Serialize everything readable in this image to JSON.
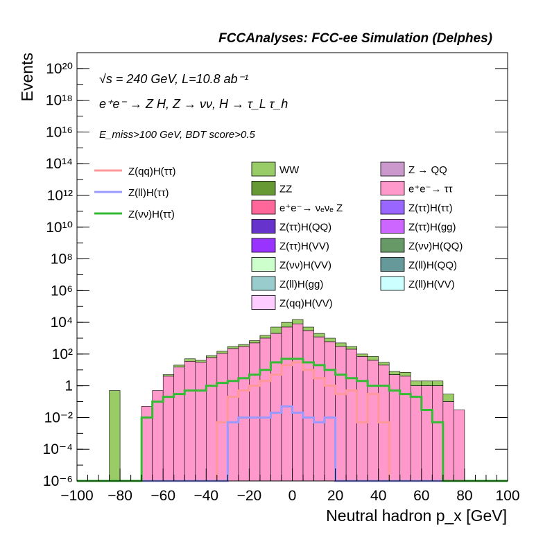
{
  "header": "FCCAnalyses: FCC-ee Simulation (Delphes)",
  "annotations": {
    "line1": "√s = 240 GeV, L=10.8 ab⁻¹",
    "line2": "e⁺e⁻ → Z H, Z → νν, H → τ_L τ_h",
    "line3": "E_miss>100 GeV, BDT score>0.5"
  },
  "chart_data": {
    "type": "bar",
    "stacked": true,
    "yscale": "log",
    "xlabel": "Neutral hadron p_x [GeV]",
    "ylabel": "Events",
    "xlim": [
      -100,
      100
    ],
    "ylim": [
      1e-06,
      1e+21
    ],
    "bin_width": 5,
    "xticks": [
      -100,
      -80,
      -60,
      -40,
      -20,
      0,
      20,
      40,
      60,
      80,
      100
    ],
    "xtick_labels": [
      "−100",
      "−80",
      "−60",
      "−40",
      "−20",
      "0",
      "20",
      "40",
      "60",
      "80",
      "100"
    ],
    "yticks": [
      {
        "value": 1e-06,
        "label": "10⁻⁶"
      },
      {
        "value": 0.0001,
        "label": "10⁻⁴"
      },
      {
        "value": 0.01,
        "label": "10⁻²"
      },
      {
        "value": 1,
        "label": "1"
      },
      {
        "value": 100.0,
        "label": "10²"
      },
      {
        "value": 10000.0,
        "label": "10⁴"
      },
      {
        "value": 1000000.0,
        "label": "10⁶"
      },
      {
        "value": 100000000.0,
        "label": "10⁸"
      },
      {
        "value": 10000000000.0,
        "label": "10¹⁰"
      },
      {
        "value": 1000000000000.0,
        "label": "10¹²"
      },
      {
        "value": 100000000000000.0,
        "label": "10¹⁴"
      },
      {
        "value": 1e+16,
        "label": "10¹⁶"
      },
      {
        "value": 1e+18,
        "label": "10¹⁸"
      },
      {
        "value": 1e+20,
        "label": "10²⁰"
      }
    ],
    "bins": [
      -100,
      -95,
      -90,
      -85,
      -80,
      -75,
      -70,
      -65,
      -60,
      -55,
      -50,
      -45,
      -40,
      -35,
      -30,
      -25,
      -20,
      -15,
      -10,
      -5,
      0,
      5,
      10,
      15,
      20,
      25,
      30,
      35,
      40,
      45,
      50,
      55,
      60,
      65,
      70,
      75,
      80,
      85,
      90,
      95
    ],
    "stack_totals": [
      0,
      0,
      0,
      0.5,
      0,
      0,
      0.05,
      0.5,
      5,
      20,
      50,
      40,
      80,
      150,
      300,
      400,
      700,
      1500,
      5000,
      10000,
      15000,
      5000,
      2000,
      1000,
      500,
      300,
      100,
      70,
      30,
      8,
      7,
      2,
      2,
      2,
      0.3,
      0.03,
      0,
      0,
      0,
      0
    ],
    "stack_components": [
      {
        "name": "WW",
        "color": "#99cc66",
        "values": [
          0,
          0,
          0,
          0.5,
          0,
          0,
          0,
          0,
          1,
          5,
          15,
          10,
          20,
          40,
          80,
          100,
          200,
          500,
          3000,
          5000,
          7000,
          2000,
          800,
          400,
          200,
          100,
          30,
          30,
          10,
          3,
          3,
          1,
          1,
          1,
          0.2,
          0,
          0,
          0,
          0,
          0
        ]
      },
      {
        "name": "e⁺e⁻→ ττ",
        "color": "#ff99cc",
        "values": [
          0,
          0,
          0,
          0,
          0,
          0,
          0.05,
          0.5,
          4,
          15,
          35,
          30,
          60,
          110,
          220,
          300,
          500,
          1000,
          2000,
          5000,
          8000,
          3000,
          1200,
          600,
          300,
          200,
          70,
          40,
          20,
          5,
          4,
          1,
          1,
          1,
          0.1,
          0.03,
          0,
          0,
          0,
          0
        ]
      },
      {
        "name": "ZZ",
        "color": "#669933",
        "values": [
          0,
          0,
          0,
          0,
          0,
          0,
          0,
          0,
          0,
          0,
          0.5,
          0.5,
          0.5,
          1,
          2,
          2,
          5,
          10,
          30,
          50,
          50,
          30,
          10,
          5,
          3,
          1,
          0.5,
          0.3,
          0.1,
          0,
          0,
          0,
          0,
          0,
          0,
          0,
          0,
          0,
          0,
          0
        ]
      }
    ],
    "overlays": [
      {
        "name": "Z(qq)H(ττ)",
        "color": "#ff9999",
        "values": [
          0,
          0,
          0,
          0,
          0,
          0,
          0,
          0,
          0,
          0,
          0,
          0,
          0,
          0.005,
          0.2,
          0.5,
          1,
          2,
          5,
          20,
          30,
          10,
          3,
          1,
          0.3,
          0.5,
          0.005,
          0.3,
          0.005,
          0,
          0,
          0,
          0,
          0,
          0,
          0,
          0,
          0,
          0,
          0
        ]
      },
      {
        "name": "Z(ll)H(ττ)",
        "color": "#9999ff",
        "values": [
          0,
          0,
          0,
          0,
          0,
          0,
          0,
          0,
          0,
          0,
          0,
          0,
          0,
          0,
          0.005,
          0.01,
          0.01,
          0.01,
          0.02,
          0.05,
          0.02,
          0.01,
          0.005,
          0.01,
          0,
          0,
          0,
          0,
          0,
          0,
          0,
          0,
          0,
          0,
          0,
          0,
          0,
          0,
          0,
          0
        ]
      },
      {
        "name": "Z(νν)H(ττ)",
        "color": "#33bb33",
        "values": [
          0,
          0,
          0,
          0,
          0,
          0,
          0.01,
          0.1,
          0.2,
          0.3,
          0.5,
          0.5,
          1,
          1.5,
          2,
          3,
          5,
          10,
          30,
          50,
          50,
          30,
          20,
          10,
          5,
          3,
          2,
          1,
          1,
          0.5,
          0.3,
          0.2,
          0.03,
          0.005,
          0,
          0,
          0,
          0,
          0,
          0
        ]
      }
    ],
    "legend": {
      "lines": [
        {
          "label": "Z(qq)H(ττ)",
          "color": "#ff9999"
        },
        {
          "label": "Z(ll)H(ττ)",
          "color": "#9999ff"
        },
        {
          "label": "Z(νν)H(ττ)",
          "color": "#33bb33"
        }
      ],
      "fills_col1": [
        {
          "label": "WW",
          "color": "#99cc66"
        },
        {
          "label": "ZZ",
          "color": "#669933"
        },
        {
          "label": "e⁺e⁻→ νₑνₑ Z",
          "color": "#ff6699"
        },
        {
          "label": "Z(ττ)H(QQ)",
          "color": "#6633cc"
        },
        {
          "label": "Z(ττ)H(VV)",
          "color": "#9933ff"
        },
        {
          "label": "Z(νν)H(VV)",
          "color": "#ccffcc"
        },
        {
          "label": "Z(ll)H(gg)",
          "color": "#99cccc"
        },
        {
          "label": "Z(qq)H(VV)",
          "color": "#ffccff"
        }
      ],
      "fills_col2": [
        {
          "label": "Z → QQ",
          "color": "#cc99cc"
        },
        {
          "label": "e⁺e⁻→ ττ",
          "color": "#ff99cc"
        },
        {
          "label": "Z(ττ)H(ττ)",
          "color": "#9966ff"
        },
        {
          "label": "Z(ττ)H(gg)",
          "color": "#cc66ff"
        },
        {
          "label": "Z(νν)H(QQ)",
          "color": "#669966"
        },
        {
          "label": "Z(ll)H(QQ)",
          "color": "#669999"
        },
        {
          "label": "Z(ll)H(VV)",
          "color": "#ccffff"
        }
      ]
    }
  }
}
